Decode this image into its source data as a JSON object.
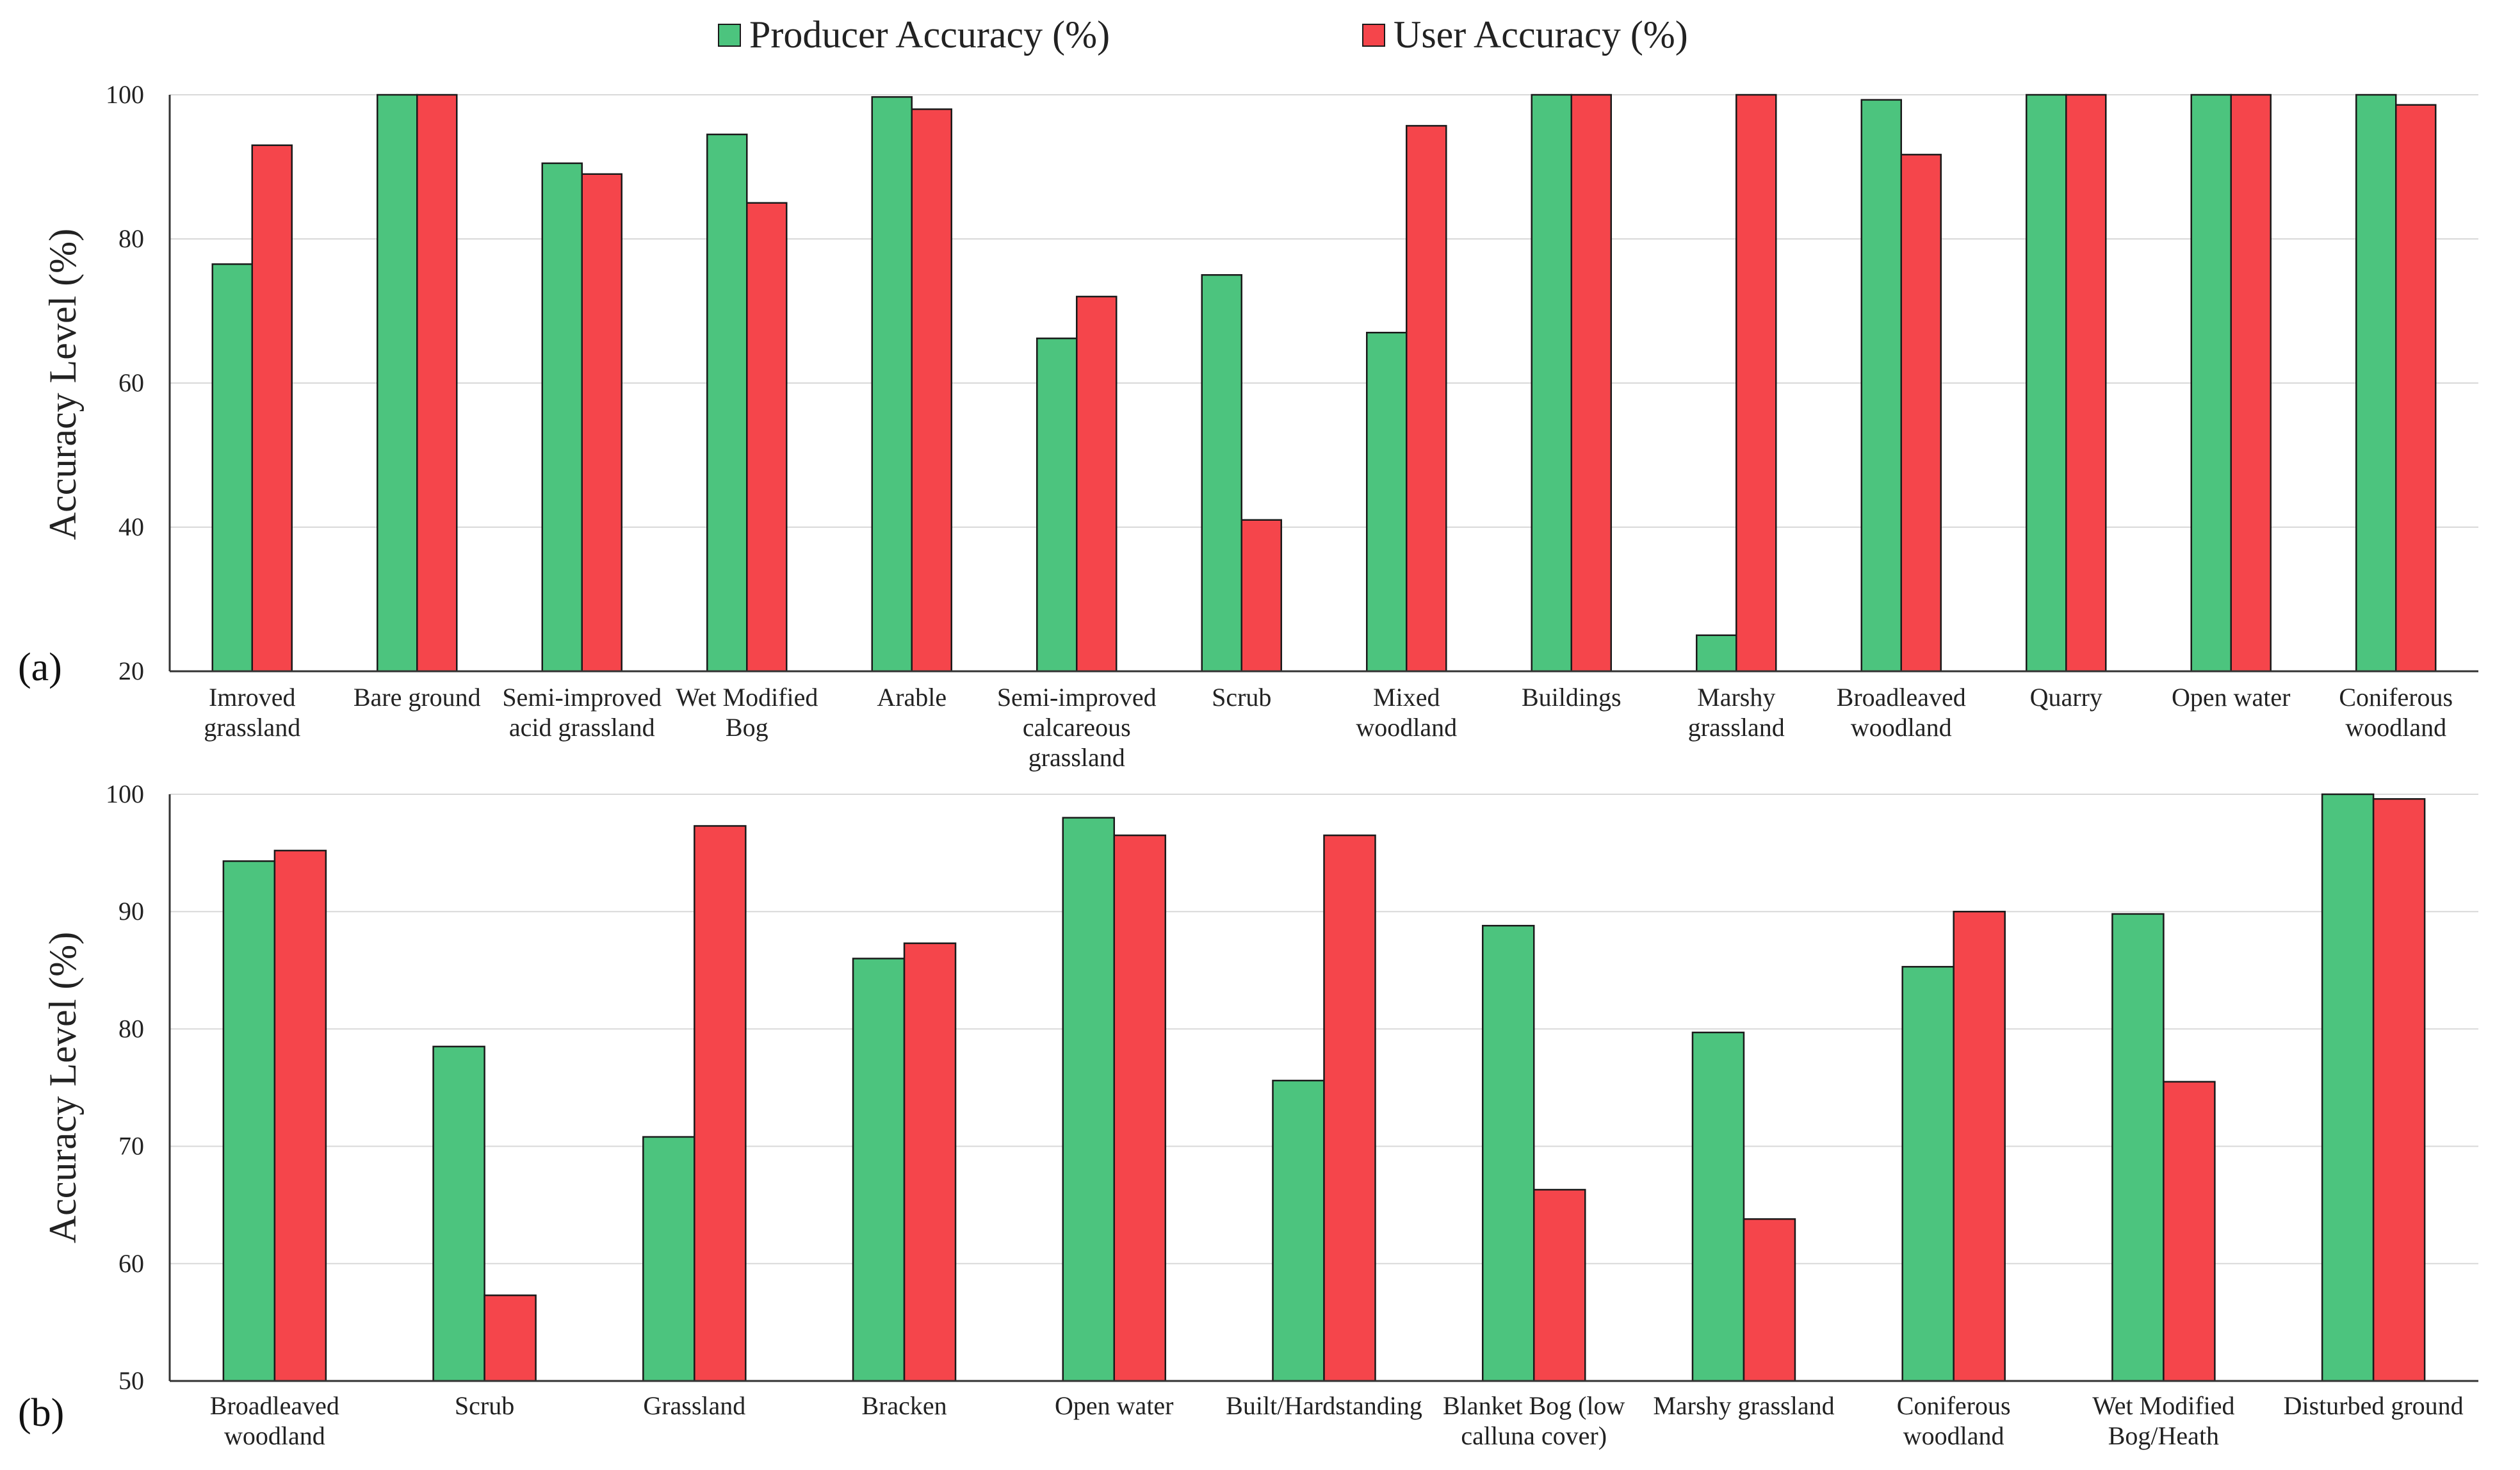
{
  "legend": {
    "producer_label": "Producer Accuracy (%)",
    "user_label": "User Accuracy (%)"
  },
  "colors": {
    "producer": "#4cc47e",
    "user": "#f5454b",
    "outline": "#1a1a1a",
    "grid": "#d9d9d9"
  },
  "chart_data": [
    {
      "panel_label": "(a)",
      "type": "bar",
      "ylabel": "Accuracy Level (%)",
      "ylim": [
        20,
        100
      ],
      "yticks": [
        20,
        40,
        60,
        80,
        100
      ],
      "grid": true,
      "categories": [
        [
          "Imroved",
          "grassland"
        ],
        [
          "Bare ground"
        ],
        [
          "Semi-improved",
          "acid grassland"
        ],
        [
          "Wet Modified",
          "Bog"
        ],
        [
          "Arable"
        ],
        [
          "Semi-improved",
          "calcareous",
          "grassland"
        ],
        [
          "Scrub"
        ],
        [
          "Mixed",
          "woodland"
        ],
        [
          "Buildings"
        ],
        [
          "Marshy",
          "grassland"
        ],
        [
          "Broadleaved",
          "woodland"
        ],
        [
          "Quarry"
        ],
        [
          "Open water"
        ],
        [
          "Coniferous",
          "woodland"
        ]
      ],
      "series": [
        {
          "name": "Producer Accuracy (%)",
          "values": [
            76.5,
            100,
            90.5,
            94.5,
            99.7,
            66.2,
            75,
            67,
            100,
            25,
            99.3,
            100,
            100,
            100
          ]
        },
        {
          "name": "User Accuracy (%)",
          "values": [
            93,
            100,
            89,
            85,
            98,
            72,
            41,
            95.7,
            100,
            100,
            91.7,
            100,
            100,
            98.6
          ]
        }
      ]
    },
    {
      "panel_label": "(b)",
      "type": "bar",
      "ylabel": "Accuracy Level (%)",
      "ylim": [
        50,
        100
      ],
      "yticks": [
        50,
        60,
        70,
        80,
        90,
        100
      ],
      "grid": true,
      "categories": [
        [
          "Broadleaved",
          "woodland"
        ],
        [
          "Scrub"
        ],
        [
          "Grassland"
        ],
        [
          "Bracken"
        ],
        [
          "Open water"
        ],
        [
          "Built/Hardstanding"
        ],
        [
          "Blanket Bog (low",
          "calluna cover)"
        ],
        [
          "Marshy grassland"
        ],
        [
          "Coniferous",
          "woodland"
        ],
        [
          "Wet Modified",
          "Bog/Heath"
        ],
        [
          "Disturbed ground"
        ]
      ],
      "series": [
        {
          "name": "Producer Accuracy (%)",
          "values": [
            94.3,
            78.5,
            70.8,
            86,
            98,
            75.6,
            88.8,
            79.7,
            85.3,
            89.8,
            100
          ]
        },
        {
          "name": "User Accuracy (%)",
          "values": [
            95.2,
            57.3,
            97.3,
            87.3,
            96.5,
            96.5,
            66.3,
            63.8,
            90,
            75.5,
            99.6
          ]
        }
      ]
    }
  ]
}
